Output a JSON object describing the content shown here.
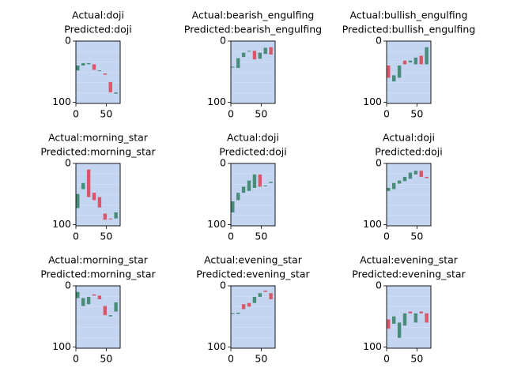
{
  "chart_data": [
    {
      "type": "image",
      "title": [
        "Actual:doji",
        "Predicted:doji"
      ],
      "xlim": [
        0,
        73
      ],
      "ylim": [
        102,
        0
      ],
      "xticks": [
        0,
        50
      ],
      "yticks": [
        0,
        100
      ],
      "candles": [
        {
          "x": 3,
          "top": 40,
          "bottom": 48,
          "color": "#4a8c7a"
        },
        {
          "x": 12,
          "top": 36,
          "bottom": 40,
          "color": "#4a8c7a"
        },
        {
          "x": 21,
          "top": 36,
          "bottom": 38,
          "color": "#4a8c7a"
        },
        {
          "x": 30,
          "top": 38,
          "bottom": 47,
          "color": "#d9576b"
        },
        {
          "x": 39,
          "top": 48,
          "bottom": 49,
          "color": "#4a8c7a"
        },
        {
          "x": 48,
          "top": 53,
          "bottom": 55,
          "color": "#d9576b"
        },
        {
          "x": 57,
          "top": 67,
          "bottom": 84,
          "color": "#d9576b"
        },
        {
          "x": 66,
          "top": 84,
          "bottom": 86,
          "color": "#4a8c7a"
        }
      ]
    },
    {
      "type": "image",
      "title": [
        "Actual:bearish_engulfing",
        "Predicted:bearish_engulfing"
      ],
      "xlim": [
        0,
        73
      ],
      "ylim": [
        102,
        0
      ],
      "xticks": [
        0,
        50
      ],
      "yticks": [
        0,
        100
      ],
      "candles": [
        {
          "x": 3,
          "top": 42,
          "bottom": 43,
          "color": "#4a8c7a"
        },
        {
          "x": 12,
          "top": 28,
          "bottom": 44,
          "color": "#4a8c7a"
        },
        {
          "x": 21,
          "top": 19,
          "bottom": 26,
          "color": "#4a8c7a"
        },
        {
          "x": 30,
          "top": 16,
          "bottom": 17,
          "color": "#4a8c7a"
        },
        {
          "x": 39,
          "top": 16,
          "bottom": 30,
          "color": "#d9576b"
        },
        {
          "x": 48,
          "top": 19,
          "bottom": 29,
          "color": "#4a8c7a"
        },
        {
          "x": 57,
          "top": 11,
          "bottom": 21,
          "color": "#4a8c7a"
        },
        {
          "x": 66,
          "top": 10,
          "bottom": 22,
          "color": "#d9576b"
        }
      ]
    },
    {
      "type": "image",
      "title": [
        "Actual:bullish_engulfing",
        "Predicted:bullish_engulfing"
      ],
      "xlim": [
        0,
        73
      ],
      "ylim": [
        102,
        0
      ],
      "xticks": [
        0,
        50
      ],
      "yticks": [
        0,
        100
      ],
      "candles": [
        {
          "x": 3,
          "top": 40,
          "bottom": 60,
          "color": "#d9576b"
        },
        {
          "x": 12,
          "top": 56,
          "bottom": 66,
          "color": "#4a8c7a"
        },
        {
          "x": 21,
          "top": 40,
          "bottom": 60,
          "color": "#4a8c7a"
        },
        {
          "x": 30,
          "top": 32,
          "bottom": 38,
          "color": "#d9576b"
        },
        {
          "x": 39,
          "top": 32,
          "bottom": 35,
          "color": "#4a8c7a"
        },
        {
          "x": 48,
          "top": 27,
          "bottom": 38,
          "color": "#4a8c7a"
        },
        {
          "x": 57,
          "top": 24,
          "bottom": 38,
          "color": "#d9576b"
        },
        {
          "x": 66,
          "top": 10,
          "bottom": 38,
          "color": "#4a8c7a"
        }
      ]
    },
    {
      "type": "image",
      "title": [
        "Actual:morning_star",
        "Predicted:morning_star"
      ],
      "xlim": [
        0,
        73
      ],
      "ylim": [
        102,
        0
      ],
      "xticks": [
        0,
        50
      ],
      "yticks": [
        0,
        100
      ],
      "candles": [
        {
          "x": 3,
          "top": 50,
          "bottom": 73,
          "color": "#4a8c7a"
        },
        {
          "x": 12,
          "top": 32,
          "bottom": 42,
          "color": "#4a8c7a"
        },
        {
          "x": 21,
          "top": 10,
          "bottom": 55,
          "color": "#d9576b"
        },
        {
          "x": 30,
          "top": 48,
          "bottom": 60,
          "color": "#d9576b"
        },
        {
          "x": 39,
          "top": 55,
          "bottom": 72,
          "color": "#d9576b"
        },
        {
          "x": 48,
          "top": 82,
          "bottom": 92,
          "color": "#d9576b"
        },
        {
          "x": 57,
          "top": 90,
          "bottom": 91,
          "color": "#d9576b"
        },
        {
          "x": 66,
          "top": 80,
          "bottom": 90,
          "color": "#4a8c7a"
        }
      ]
    },
    {
      "type": "image",
      "title": [
        "Actual:doji",
        "Predicted:doji"
      ],
      "xlim": [
        0,
        73
      ],
      "ylim": [
        102,
        0
      ],
      "xticks": [
        0,
        50
      ],
      "yticks": [
        0,
        100
      ],
      "candles": [
        {
          "x": 3,
          "top": 62,
          "bottom": 80,
          "color": "#4a8c7a"
        },
        {
          "x": 12,
          "top": 48,
          "bottom": 60,
          "color": "#4a8c7a"
        },
        {
          "x": 21,
          "top": 38,
          "bottom": 48,
          "color": "#4a8c7a"
        },
        {
          "x": 30,
          "top": 28,
          "bottom": 45,
          "color": "#4a8c7a"
        },
        {
          "x": 39,
          "top": 18,
          "bottom": 40,
          "color": "#4a8c7a"
        },
        {
          "x": 48,
          "top": 18,
          "bottom": 38,
          "color": "#d9576b"
        },
        {
          "x": 57,
          "top": 36,
          "bottom": 37,
          "color": "#4a8c7a"
        },
        {
          "x": 66,
          "top": 30,
          "bottom": 32,
          "color": "#4a8c7a"
        }
      ]
    },
    {
      "type": "image",
      "title": [
        "Actual:doji",
        "Predicted:doji"
      ],
      "xlim": [
        0,
        73
      ],
      "ylim": [
        102,
        0
      ],
      "xticks": [
        0,
        50
      ],
      "yticks": [
        0,
        100
      ],
      "candles": [
        {
          "x": 3,
          "top": 40,
          "bottom": 45,
          "color": "#4a8c7a"
        },
        {
          "x": 12,
          "top": 32,
          "bottom": 42,
          "color": "#4a8c7a"
        },
        {
          "x": 21,
          "top": 28,
          "bottom": 33,
          "color": "#4a8c7a"
        },
        {
          "x": 30,
          "top": 22,
          "bottom": 29,
          "color": "#4a8c7a"
        },
        {
          "x": 39,
          "top": 15,
          "bottom": 25,
          "color": "#4a8c7a"
        },
        {
          "x": 48,
          "top": 12,
          "bottom": 18,
          "color": "#4a8c7a"
        },
        {
          "x": 57,
          "top": 12,
          "bottom": 22,
          "color": "#d9576b"
        },
        {
          "x": 66,
          "top": 22,
          "bottom": 24,
          "color": "#d9576b"
        }
      ]
    },
    {
      "type": "image",
      "title": [
        "Actual:morning_star",
        "Predicted:morning_star"
      ],
      "xlim": [
        0,
        73
      ],
      "ylim": [
        102,
        0
      ],
      "xticks": [
        0,
        50
      ],
      "yticks": [
        0,
        100
      ],
      "candles": [
        {
          "x": 3,
          "top": 10,
          "bottom": 20,
          "color": "#4a8c7a"
        },
        {
          "x": 12,
          "top": 20,
          "bottom": 33,
          "color": "#4a8c7a"
        },
        {
          "x": 21,
          "top": 18,
          "bottom": 30,
          "color": "#4a8c7a"
        },
        {
          "x": 30,
          "top": 14,
          "bottom": 16,
          "color": "#d9576b"
        },
        {
          "x": 39,
          "top": 16,
          "bottom": 22,
          "color": "#d9576b"
        },
        {
          "x": 48,
          "top": 33,
          "bottom": 48,
          "color": "#d9576b"
        },
        {
          "x": 57,
          "top": 48,
          "bottom": 50,
          "color": "#4a8c7a"
        },
        {
          "x": 66,
          "top": 27,
          "bottom": 42,
          "color": "#4a8c7a"
        }
      ]
    },
    {
      "type": "image",
      "title": [
        "Actual:evening_star",
        "Predicted:evening_star"
      ],
      "xlim": [
        0,
        73
      ],
      "ylim": [
        102,
        0
      ],
      "xticks": [
        0,
        50
      ],
      "yticks": [
        0,
        100
      ],
      "candles": [
        {
          "x": 3,
          "top": 45,
          "bottom": 46,
          "color": "#4a8c7a"
        },
        {
          "x": 12,
          "top": 44,
          "bottom": 46,
          "color": "#4a8c7a"
        },
        {
          "x": 21,
          "top": 30,
          "bottom": 38,
          "color": "#d9576b"
        },
        {
          "x": 30,
          "top": 28,
          "bottom": 34,
          "color": "#d9576b"
        },
        {
          "x": 39,
          "top": 18,
          "bottom": 28,
          "color": "#4a8c7a"
        },
        {
          "x": 48,
          "top": 12,
          "bottom": 18,
          "color": "#4a8c7a"
        },
        {
          "x": 57,
          "top": 8,
          "bottom": 10,
          "color": "#d9576b"
        },
        {
          "x": 66,
          "top": 12,
          "bottom": 22,
          "color": "#d9576b"
        }
      ]
    },
    {
      "type": "image",
      "title": [
        "Actual:evening_star",
        "Predicted:evening_star"
      ],
      "xlim": [
        0,
        73
      ],
      "ylim": [
        102,
        0
      ],
      "xticks": [
        0,
        50
      ],
      "yticks": [
        0,
        100
      ],
      "candles": [
        {
          "x": 3,
          "top": 55,
          "bottom": 70,
          "color": "#d9576b"
        },
        {
          "x": 12,
          "top": 50,
          "bottom": 62,
          "color": "#4a8c7a"
        },
        {
          "x": 21,
          "top": 60,
          "bottom": 85,
          "color": "#4a8c7a"
        },
        {
          "x": 30,
          "top": 45,
          "bottom": 65,
          "color": "#4a8c7a"
        },
        {
          "x": 39,
          "top": 42,
          "bottom": 45,
          "color": "#d9576b"
        },
        {
          "x": 48,
          "top": 45,
          "bottom": 60,
          "color": "#4a8c7a"
        },
        {
          "x": 57,
          "top": 42,
          "bottom": 45,
          "color": "#d9576b"
        },
        {
          "x": 66,
          "top": 45,
          "bottom": 60,
          "color": "#d9576b"
        }
      ]
    }
  ]
}
